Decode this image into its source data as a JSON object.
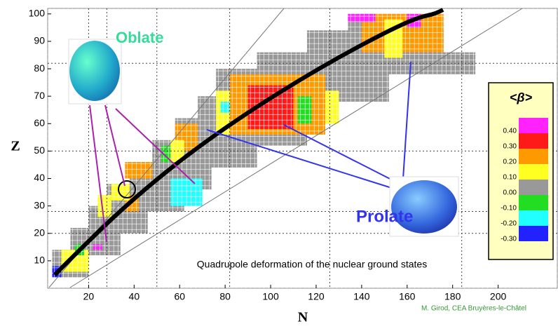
{
  "chart_data": {
    "type": "heatmap",
    "xlabel": "N",
    "ylabel": "Z",
    "caption": "Quadrupole deformation of the nuclear ground states",
    "label_oblate": "Oblate",
    "label_prolate": "Prolate",
    "credit": "M. Girod, CEA Bruyères-le-Châtel",
    "xlim": [
      2,
      226
    ],
    "ylim": [
      0,
      102
    ],
    "xticks": [
      20,
      40,
      60,
      80,
      100,
      120,
      140,
      160,
      180,
      200
    ],
    "yticks": [
      10,
      20,
      30,
      40,
      50,
      60,
      70,
      80,
      90,
      100
    ],
    "magic_n": [
      20,
      28,
      50,
      82,
      126,
      184
    ],
    "magic_z": [
      20,
      28,
      50,
      82
    ],
    "colorbar": {
      "title": "<β>",
      "levels": [
        {
          "value": 0.4,
          "label": "0.40"
        },
        {
          "value": 0.3,
          "label": "0.30"
        },
        {
          "value": 0.2,
          "label": "0.20"
        },
        {
          "value": 0.1,
          "label": "0.10"
        },
        {
          "value": 0,
          "label": "0.00"
        },
        {
          "value": -0.1,
          "label": "-0.10"
        },
        {
          "value": -0.2,
          "label": "-0.20"
        },
        {
          "value": -0.3,
          "label": "-0.30"
        }
      ],
      "colors": [
        "#ff22ff",
        "#ff1a1a",
        "#ff9900",
        "#ffff22",
        "#999999",
        "#22dd22",
        "#22ffff",
        "#2222ff"
      ]
    },
    "regions": [
      {
        "n": [
          4,
          20
        ],
        "z": [
          4,
          14
        ],
        "beta": 0.05
      },
      {
        "n": [
          12,
          34
        ],
        "z": [
          12,
          22
        ],
        "beta": 0.05
      },
      {
        "n": [
          20,
          46
        ],
        "z": [
          20,
          30
        ],
        "beta": 0.05
      },
      {
        "n": [
          28,
          62
        ],
        "z": [
          28,
          38
        ],
        "beta": 0.05
      },
      {
        "n": [
          38,
          74
        ],
        "z": [
          36,
          46
        ],
        "beta": 0.05
      },
      {
        "n": [
          48,
          94
        ],
        "z": [
          44,
          54
        ],
        "beta": 0.05
      },
      {
        "n": [
          58,
          116
        ],
        "z": [
          52,
          62
        ],
        "beta": 0.05
      },
      {
        "n": [
          68,
          128
        ],
        "z": [
          60,
          70
        ],
        "beta": 0.05
      },
      {
        "n": [
          76,
          152
        ],
        "z": [
          68,
          80
        ],
        "beta": 0.05
      },
      {
        "n": [
          94,
          190
        ],
        "z": [
          78,
          86
        ],
        "beta": 0.05
      },
      {
        "n": [
          116,
          176
        ],
        "z": [
          84,
          94
        ],
        "beta": 0.05
      },
      {
        "n": [
          134,
          170
        ],
        "z": [
          92,
          100
        ],
        "beta": 0.05
      },
      {
        "n": [
          82,
          124
        ],
        "z": [
          56,
          78
        ],
        "beta": 0.25
      },
      {
        "n": [
          76,
          82
        ],
        "z": [
          56,
          72
        ],
        "beta": 0.15
      },
      {
        "n": [
          124,
          130
        ],
        "z": [
          60,
          72
        ],
        "beta": 0.15
      },
      {
        "n": [
          90,
          110
        ],
        "z": [
          58,
          74
        ],
        "beta": 0.32
      },
      {
        "n": [
          112,
          118
        ],
        "z": [
          60,
          70
        ],
        "beta": -0.05
      },
      {
        "n": [
          140,
          176
        ],
        "z": [
          86,
          100
        ],
        "beta": 0.25
      },
      {
        "n": [
          150,
          158
        ],
        "z": [
          84,
          98
        ],
        "beta": 0.15
      },
      {
        "n": [
          134,
          146
        ],
        "z": [
          97,
          100
        ],
        "beta": 0.42
      },
      {
        "n": [
          160,
          166
        ],
        "z": [
          95,
          100
        ],
        "beta": 0.42
      },
      {
        "n": [
          56,
          70
        ],
        "z": [
          30,
          40
        ],
        "beta": -0.15
      },
      {
        "n": [
          58,
          68
        ],
        "z": [
          50,
          60
        ],
        "beta": 0.25
      },
      {
        "n": [
          56,
          62
        ],
        "z": [
          46,
          54
        ],
        "beta": 0.15
      },
      {
        "n": [
          24,
          30
        ],
        "z": [
          26,
          34
        ],
        "beta": 0.15
      },
      {
        "n": [
          36,
          42
        ],
        "z": [
          28,
          34
        ],
        "beta": 0.25
      },
      {
        "n": [
          8,
          20
        ],
        "z": [
          6,
          14
        ],
        "beta": 0.15
      },
      {
        "n": [
          14,
          18
        ],
        "z": [
          12,
          16
        ],
        "beta": -0.05
      },
      {
        "n": [
          4,
          8
        ],
        "z": [
          4,
          8
        ],
        "beta": -0.3
      },
      {
        "n": [
          22,
          26
        ],
        "z": [
          14,
          16
        ],
        "beta": 0.42
      },
      {
        "n": [
          30,
          38
        ],
        "z": [
          32,
          38
        ],
        "beta": 0.15
      },
      {
        "n": [
          52,
          56
        ],
        "z": [
          46,
          52
        ],
        "beta": -0.05
      },
      {
        "n": [
          78,
          82
        ],
        "z": [
          64,
          68
        ],
        "beta": -0.15
      },
      {
        "n": [
          36,
          48
        ],
        "z": [
          40,
          46
        ],
        "beta": 0.25
      }
    ]
  }
}
